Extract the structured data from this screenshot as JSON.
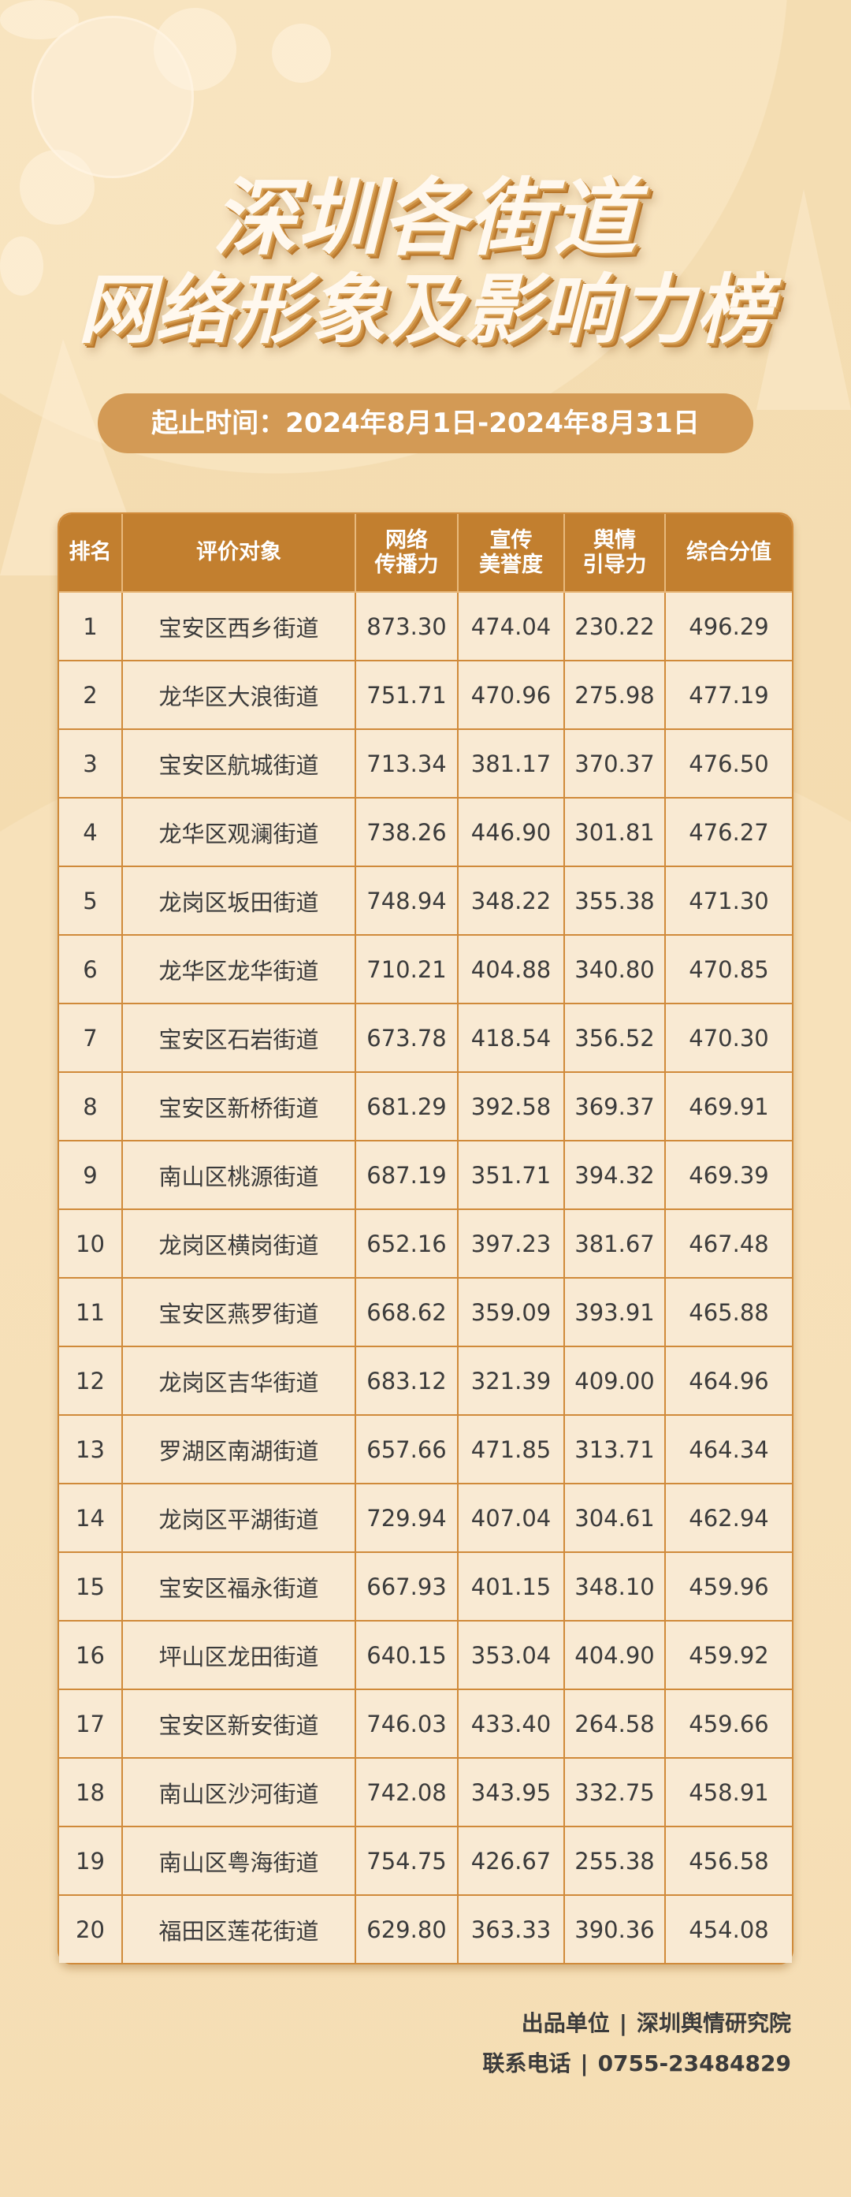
{
  "title": {
    "line1": "深圳各街道",
    "line2": "网络形象及影响力榜"
  },
  "date_range": "起止时间：2024年8月1日-2024年8月31日",
  "table": {
    "headers": [
      "排名",
      "评价对象",
      "网络\n传播力",
      "宣传\n美誉度",
      "舆情\n引导力",
      "综合分值"
    ],
    "rows": [
      [
        "1",
        "宝安区西乡街道",
        "873.30",
        "474.04",
        "230.22",
        "496.29"
      ],
      [
        "2",
        "龙华区大浪街道",
        "751.71",
        "470.96",
        "275.98",
        "477.19"
      ],
      [
        "3",
        "宝安区航城街道",
        "713.34",
        "381.17",
        "370.37",
        "476.50"
      ],
      [
        "4",
        "龙华区观澜街道",
        "738.26",
        "446.90",
        "301.81",
        "476.27"
      ],
      [
        "5",
        "龙岗区坂田街道",
        "748.94",
        "348.22",
        "355.38",
        "471.30"
      ],
      [
        "6",
        "龙华区龙华街道",
        "710.21",
        "404.88",
        "340.80",
        "470.85"
      ],
      [
        "7",
        "宝安区石岩街道",
        "673.78",
        "418.54",
        "356.52",
        "470.30"
      ],
      [
        "8",
        "宝安区新桥街道",
        "681.29",
        "392.58",
        "369.37",
        "469.91"
      ],
      [
        "9",
        "南山区桃源街道",
        "687.19",
        "351.71",
        "394.32",
        "469.39"
      ],
      [
        "10",
        "龙岗区横岗街道",
        "652.16",
        "397.23",
        "381.67",
        "467.48"
      ],
      [
        "11",
        "宝安区燕罗街道",
        "668.62",
        "359.09",
        "393.91",
        "465.88"
      ],
      [
        "12",
        "龙岗区吉华街道",
        "683.12",
        "321.39",
        "409.00",
        "464.96"
      ],
      [
        "13",
        "罗湖区南湖街道",
        "657.66",
        "471.85",
        "313.71",
        "464.34"
      ],
      [
        "14",
        "龙岗区平湖街道",
        "729.94",
        "407.04",
        "304.61",
        "462.94"
      ],
      [
        "15",
        "宝安区福永街道",
        "667.93",
        "401.15",
        "348.10",
        "459.96"
      ],
      [
        "16",
        "坪山区龙田街道",
        "640.15",
        "353.04",
        "404.90",
        "459.92"
      ],
      [
        "17",
        "宝安区新安街道",
        "746.03",
        "433.40",
        "264.58",
        "459.66"
      ],
      [
        "18",
        "南山区沙河街道",
        "742.08",
        "343.95",
        "332.75",
        "458.91"
      ],
      [
        "19",
        "南山区粤海街道",
        "754.75",
        "426.67",
        "255.38",
        "456.58"
      ],
      [
        "20",
        "福田区莲花街道",
        "629.80",
        "363.33",
        "390.36",
        "454.08"
      ]
    ]
  },
  "footer": {
    "producer_label": "出品单位",
    "producer": "深圳舆情研究院",
    "phone_label": "联系电话",
    "phone": "0755-23484829",
    "separator": "|"
  },
  "colors": {
    "header": "#c27f2f",
    "cell": "#f9ead3",
    "border": "#d08a3a",
    "pill": "#d39a55",
    "background": "#f4ddb2"
  },
  "decor_icons": [
    "wifi-icon",
    "cloud-icon",
    "cloud-download-icon",
    "share-icon",
    "server-icon"
  ]
}
